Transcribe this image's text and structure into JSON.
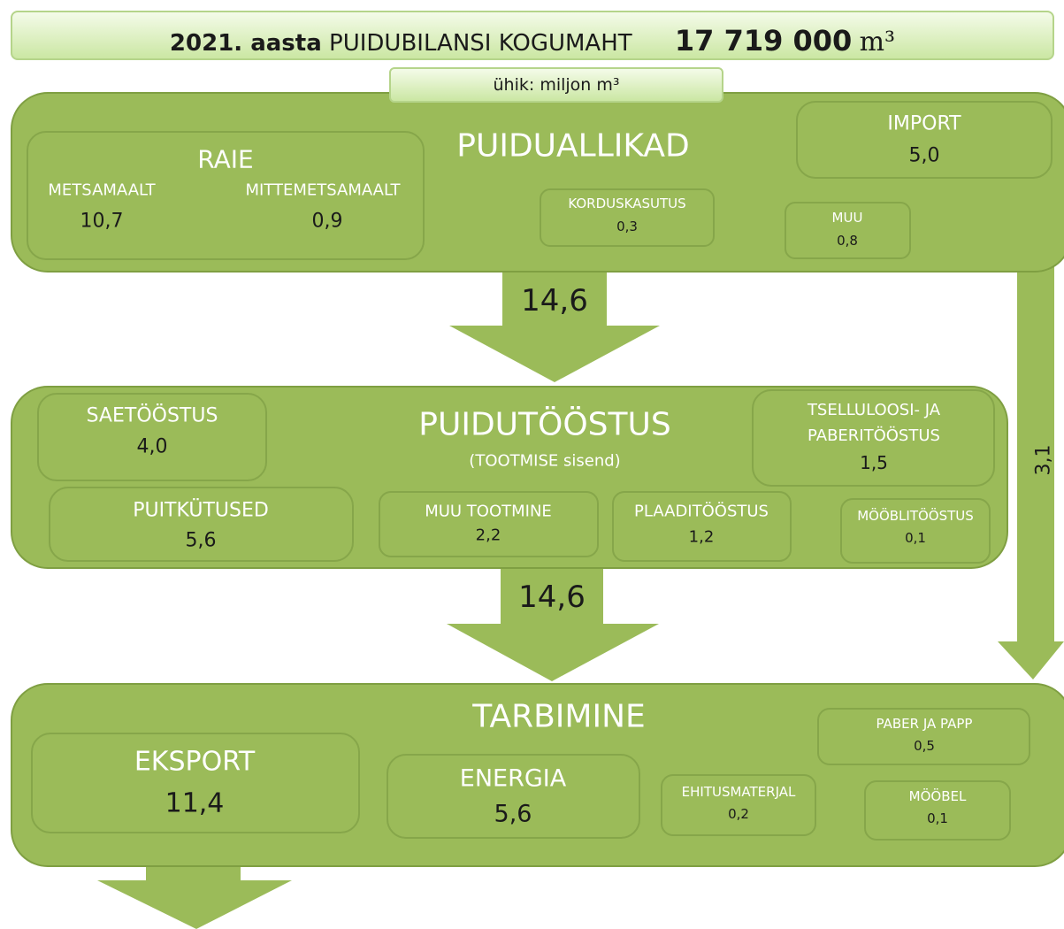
{
  "header": {
    "year": "2021. aasta",
    "title": "PUIDUBILANSI KOGUMAHT",
    "total": "17 719 000",
    "unit": "m³"
  },
  "unit_note": "ühik: miljon m³",
  "sources": {
    "title": "PUIDUALLIKAD",
    "raie": {
      "title": "RAIE",
      "forest_label": "METSAMAALT",
      "forest_value": "10,7",
      "nonforest_label": "MITTEMETSAMAALT",
      "nonforest_value": "0,9"
    },
    "import": {
      "label": "IMPORT",
      "value": "5,0"
    },
    "reuse": {
      "label": "KORDUSKASUTUS",
      "value": "0,3"
    },
    "other": {
      "label": "MUU",
      "value": "0,8"
    }
  },
  "flow1": "14,6",
  "side_flow": "3,1",
  "industry": {
    "title": "PUIDUTÖÖSTUS",
    "subtitle": "(TOOTMISE sisend)",
    "sawmill": {
      "label": "SAETÖÖSTUS",
      "value": "4,0"
    },
    "pulp": {
      "label": "TSELLULOOSI- JA PABERITÖÖSTUS",
      "value": "1,5"
    },
    "fuels": {
      "label": "PUITKÜTUSED",
      "value": "5,6"
    },
    "other": {
      "label": "MUU TOOTMINE",
      "value": "2,2"
    },
    "panels": {
      "label": "PLAADITÖÖSTUS",
      "value": "1,2"
    },
    "furniture": {
      "label": "MÖÖBLITÖÖSTUS",
      "value": "0,1"
    }
  },
  "flow2": "14,6",
  "consumption": {
    "title": "TARBIMINE",
    "export": {
      "label": "EKSPORT",
      "value": "11,4"
    },
    "energy": {
      "label": "ENERGIA",
      "value": "5,6"
    },
    "building": {
      "label": "EHITUSMATERJAL",
      "value": "0,2"
    },
    "paper": {
      "label": "PABER JA PAPP",
      "value": "0,5"
    },
    "furniture": {
      "label": "MÖÖBEL",
      "value": "0,1"
    }
  }
}
